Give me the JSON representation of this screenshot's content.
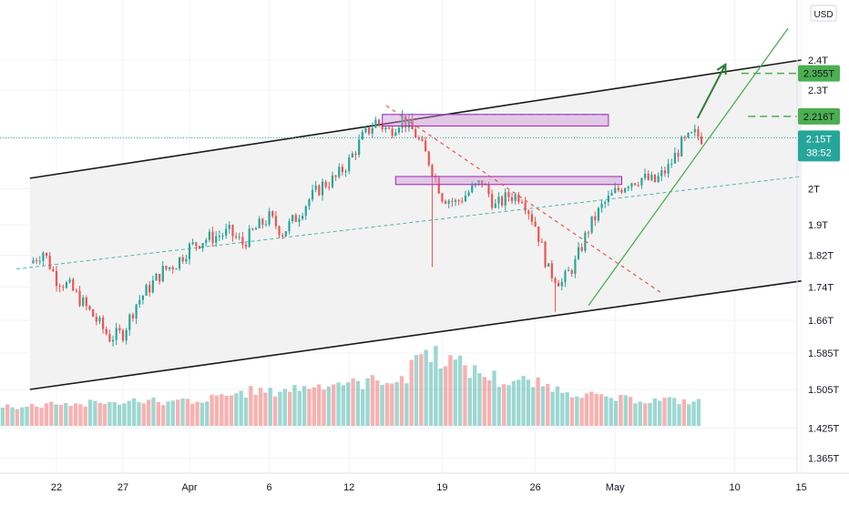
{
  "chart_data": {
    "type": "candlestick",
    "instrument_currency": "USD",
    "x_tick_labels": [
      "22",
      "27",
      "Apr",
      "6",
      "12",
      "19",
      "26",
      "May",
      "10",
      "15"
    ],
    "x_tick_day_index": [
      0,
      5,
      10,
      16,
      22,
      29,
      36,
      42,
      51,
      56
    ],
    "y_ticks": [
      {
        "value": 2.4,
        "label": "2.4T"
      },
      {
        "value": 2.3,
        "label": "2.3T"
      },
      {
        "value": 2.0,
        "label": "2T"
      },
      {
        "value": 1.9,
        "label": "1.9T"
      },
      {
        "value": 1.82,
        "label": "1.82T"
      },
      {
        "value": 1.74,
        "label": "1.74T"
      },
      {
        "value": 1.66,
        "label": "1.66T"
      },
      {
        "value": 1.585,
        "label": "1.585T"
      },
      {
        "value": 1.505,
        "label": "1.505T"
      },
      {
        "value": 1.425,
        "label": "1.425T"
      },
      {
        "value": 1.365,
        "label": "1.365T"
      }
    ],
    "price_badges": [
      {
        "label": "2.355T",
        "value": 2.355,
        "color": "#4caf50"
      },
      {
        "label": "2.216T",
        "value": 2.216,
        "color": "#4caf50"
      },
      {
        "label": "2.15T",
        "sublabel": "38:52",
        "value": 2.15,
        "color": "#26a69a"
      }
    ],
    "close_path": [
      [
        -2,
        1.8
      ],
      [
        -1,
        1.83
      ],
      [
        0,
        1.76
      ],
      [
        1,
        1.74
      ],
      [
        2,
        1.7
      ],
      [
        3,
        1.66
      ],
      [
        4,
        1.62
      ],
      [
        5,
        1.63
      ],
      [
        6,
        1.7
      ],
      [
        7,
        1.74
      ],
      [
        8,
        1.78
      ],
      [
        9,
        1.8
      ],
      [
        10,
        1.84
      ],
      [
        11,
        1.86
      ],
      [
        12,
        1.87
      ],
      [
        13,
        1.88
      ],
      [
        14,
        1.85
      ],
      [
        15,
        1.89
      ],
      [
        16,
        1.92
      ],
      [
        17,
        1.88
      ],
      [
        18,
        1.92
      ],
      [
        19,
        1.97
      ],
      [
        20,
        2.01
      ],
      [
        21,
        2.03
      ],
      [
        22,
        2.08
      ],
      [
        23,
        2.15
      ],
      [
        24,
        2.2
      ],
      [
        25,
        2.17
      ],
      [
        26,
        2.21
      ],
      [
        27,
        2.16
      ],
      [
        28,
        2.08
      ],
      [
        29,
        1.98
      ],
      [
        30,
        1.96
      ],
      [
        31,
        1.99
      ],
      [
        32,
        2.02
      ],
      [
        33,
        1.95
      ],
      [
        34,
        1.98
      ],
      [
        35,
        1.98
      ],
      [
        36,
        1.9
      ],
      [
        37,
        1.78
      ],
      [
        38,
        1.75
      ],
      [
        39,
        1.8
      ],
      [
        40,
        1.89
      ],
      [
        41,
        1.95
      ],
      [
        42,
        1.99
      ],
      [
        43,
        2.02
      ],
      [
        44,
        2.03
      ],
      [
        45,
        2.02
      ],
      [
        46,
        2.06
      ],
      [
        47,
        2.13
      ],
      [
        48,
        2.16
      ],
      [
        48.5,
        2.15
      ]
    ],
    "volume_relative": [
      0.28,
      0.26,
      0.28,
      0.32,
      0.3,
      0.27,
      0.35,
      0.3,
      0.33,
      0.36,
      0.35,
      0.32,
      0.34,
      0.3,
      0.38,
      0.42,
      0.45,
      0.48,
      0.46,
      0.5,
      0.52,
      0.55,
      0.58,
      0.6,
      0.58,
      0.62,
      0.64,
      0.6,
      0.98,
      1.0,
      0.92,
      0.85,
      0.75,
      0.68,
      0.6,
      0.62,
      0.58,
      0.55,
      0.5,
      0.45,
      0.42,
      0.38,
      0.37,
      0.36,
      0.35,
      0.36,
      0.34,
      0.33
    ],
    "channel": {
      "upper": {
        "from": [
          -2,
          2.03
        ],
        "to": [
          56,
          2.4
        ]
      },
      "lower": {
        "from": [
          -2,
          1.505
        ],
        "to": [
          56,
          1.755
        ]
      },
      "midline": {
        "from": [
          -3,
          1.785
        ],
        "to": [
          56,
          2.035
        ]
      }
    },
    "zones": [
      {
        "from_day": 24.5,
        "to_day": 41.5,
        "top": 2.222,
        "bottom": 2.186
      },
      {
        "from_day": 25.5,
        "to_day": 42.5,
        "top": 2.035,
        "bottom": 2.012
      }
    ],
    "downtrend": {
      "from": [
        24.8,
        2.25
      ],
      "to": [
        45.5,
        1.725
      ]
    },
    "uptrend": {
      "from": [
        40,
        1.695
      ],
      "to": [
        55,
        2.51
      ]
    },
    "arrow": {
      "from": [
        48.2,
        2.21
      ],
      "to": [
        50.3,
        2.385
      ]
    },
    "target_levels": [
      {
        "value": 2.355,
        "from_day": 51.5
      },
      {
        "value": 2.216,
        "from_day": 52.0
      }
    ],
    "current_price_line": 2.15
  }
}
